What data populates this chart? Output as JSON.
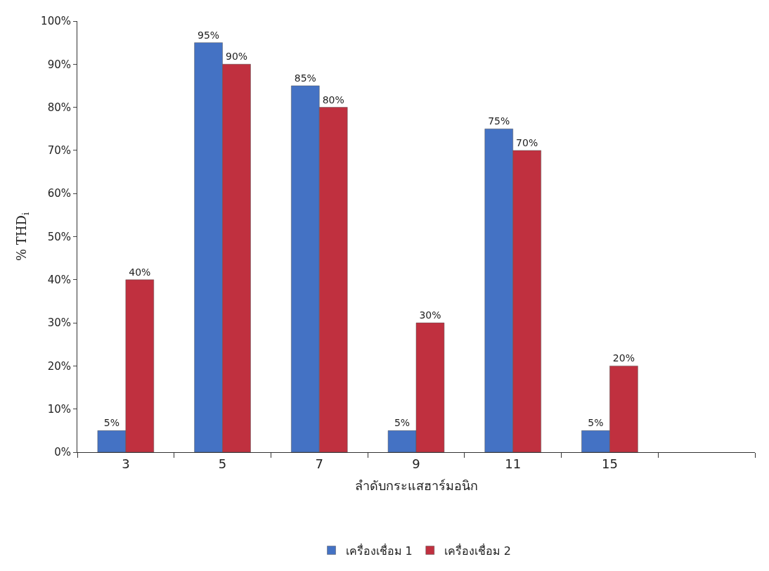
{
  "chart_data": {
    "type": "bar",
    "xlabel": "ลำดับกระแสฮาร์มอนิก",
    "ylabel": "% THD$_{i}$",
    "categories": [
      "3",
      "5",
      "7",
      "9",
      "11",
      "15",
      null
    ],
    "series": [
      {
        "name": "เครื่องเชื่อม 1",
        "color": "#4472c4",
        "values": [
          5,
          95,
          85,
          5,
          75,
          5,
          null
        ],
        "value_labels": [
          "5%",
          "95%",
          "85%",
          "5%",
          "75%",
          "5%",
          null
        ]
      },
      {
        "name": "เครื่องเชื่อม 2",
        "color": "#c0303f",
        "values": [
          40,
          90,
          80,
          30,
          70,
          20,
          null
        ],
        "value_labels": [
          "40%",
          "90%",
          "80%",
          "30%",
          "70%",
          "20%",
          null
        ]
      }
    ],
    "ylim": [
      0,
      100
    ],
    "yticks": [
      {
        "value": 0,
        "label": "0%"
      },
      {
        "value": 10,
        "label": "10%"
      },
      {
        "value": 20,
        "label": "20%"
      },
      {
        "value": 30,
        "label": "30%"
      },
      {
        "value": 40,
        "label": "40%"
      },
      {
        "value": 50,
        "label": "50%"
      },
      {
        "value": 60,
        "label": "60%"
      },
      {
        "value": 70,
        "label": "70%"
      },
      {
        "value": 80,
        "label": "80%"
      },
      {
        "value": 90,
        "label": "90%"
      },
      {
        "value": 100,
        "label": "100%"
      }
    ],
    "legend": "bottom"
  }
}
